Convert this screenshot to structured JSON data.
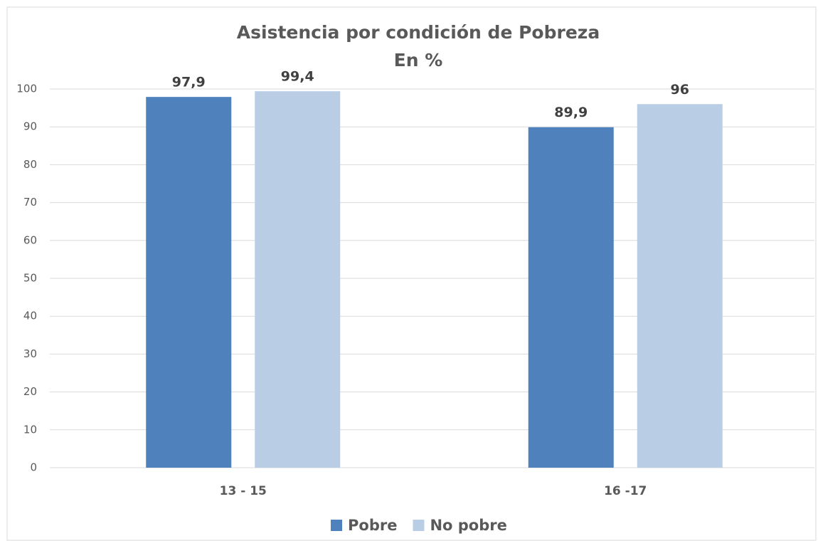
{
  "chart_data": {
    "type": "bar",
    "title": "Asistencia por condición de Pobreza",
    "subtitle": "En %",
    "categories": [
      "13 - 15",
      "16 -17"
    ],
    "series": [
      {
        "name": "Pobre",
        "color": "#4f81bd",
        "values": [
          97.9,
          89.9
        ],
        "value_labels": [
          "97,9",
          "89,9"
        ]
      },
      {
        "name": "No pobre",
        "color": "#b9cde5",
        "values": [
          99.4,
          96
        ],
        "value_labels": [
          "99,4",
          "96"
        ]
      }
    ],
    "ylim": [
      0,
      100
    ],
    "yticks": [
      0,
      10,
      20,
      30,
      40,
      50,
      60,
      70,
      80,
      90,
      100
    ],
    "grid": true,
    "legend": "bottom"
  }
}
